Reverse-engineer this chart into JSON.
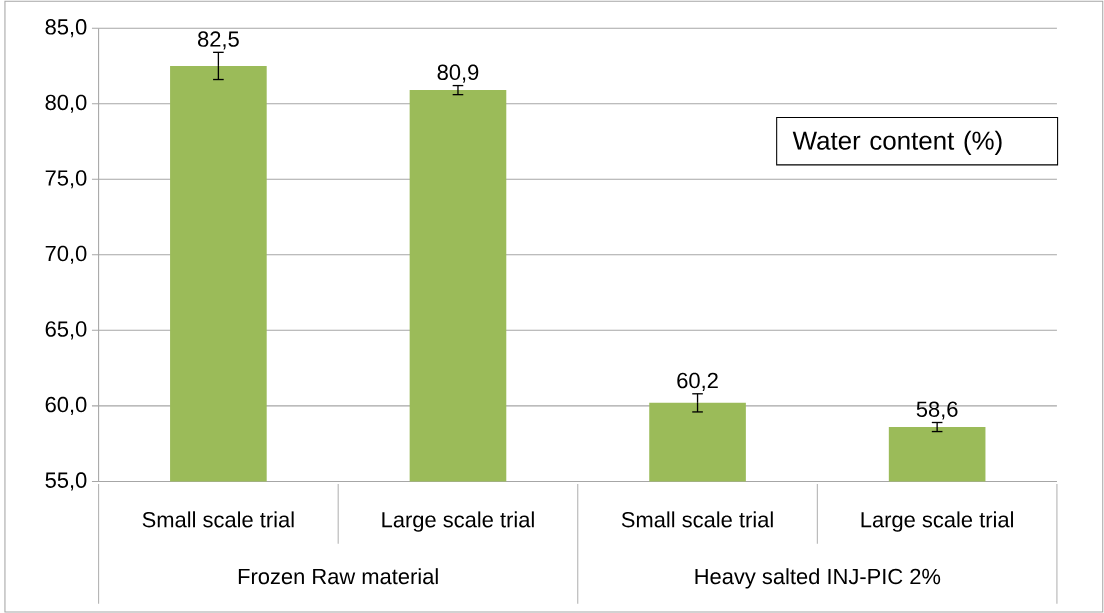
{
  "chart_data": {
    "type": "bar",
    "categories": [
      "Small scale trial",
      "Large scale trial",
      "Small scale trial",
      "Large scale trial"
    ],
    "series": [
      {
        "name": "Water content (%)",
        "color": "#9bbb59",
        "values": [
          82.5,
          80.9,
          60.2,
          58.6
        ],
        "errors": [
          0.9,
          0.3,
          0.6,
          0.3
        ],
        "value_labels": [
          "82,5",
          "80,9",
          "60,2",
          "58,6"
        ]
      }
    ],
    "ylim": [
      55,
      85
    ],
    "yticks": [
      {
        "value": 55,
        "label": "55,0"
      },
      {
        "value": 60,
        "label": "60,0"
      },
      {
        "value": 65,
        "label": "65,0"
      },
      {
        "value": 70,
        "label": "70,0"
      },
      {
        "value": 75,
        "label": "75,0"
      },
      {
        "value": 80,
        "label": "80,0"
      },
      {
        "value": 85,
        "label": "85,0"
      }
    ],
    "grid": "y",
    "legend": "top right",
    "annotations": [
      "Frozen Raw material",
      "Heavy salted INJ-PIC 2%"
    ]
  }
}
